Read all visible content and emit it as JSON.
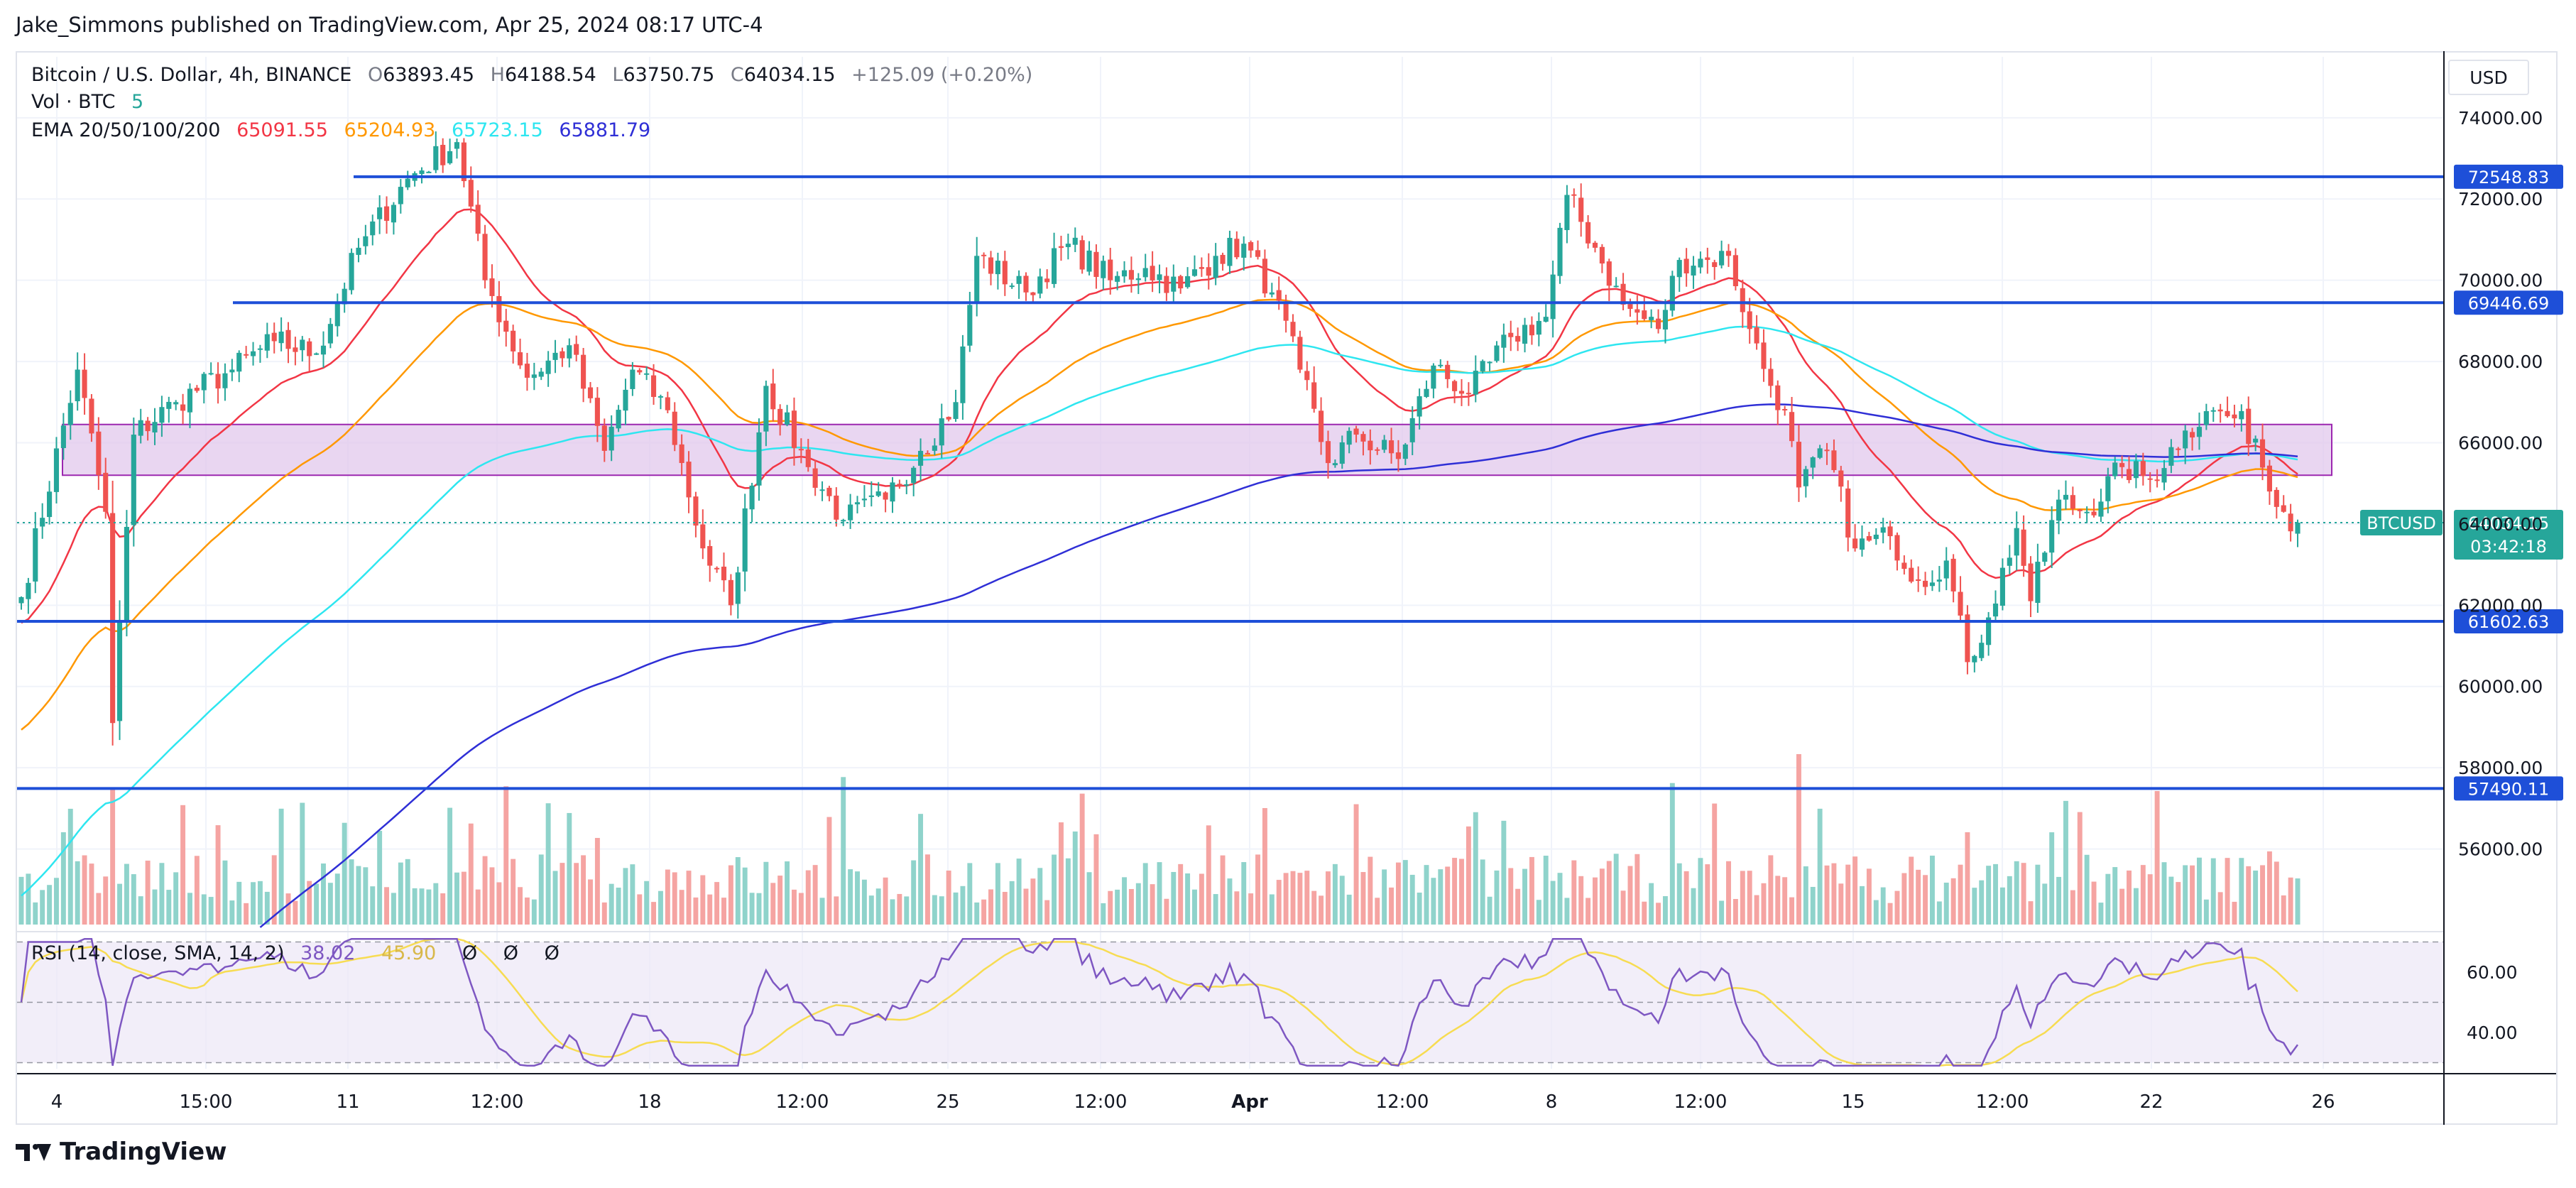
{
  "publisher": "Jake_Simmons published on TradingView.com, Apr 25, 2024 08:17 UTC-4",
  "brand": "TradingView",
  "currency": "USD",
  "legend": {
    "symbol": "Bitcoin / U.S. Dollar, 4h, BINANCE",
    "o_label": "O",
    "o": "63893.45",
    "h_label": "H",
    "h": "64188.54",
    "l_label": "L",
    "l": "63750.75",
    "c_label": "C",
    "c": "64034.15",
    "change": "+125.09 (+0.20%)",
    "vol_label": "Vol · BTC",
    "vol_value": "5",
    "ema_label": "EMA 20/50/100/200",
    "ema20": "65091.55",
    "ema50": "65204.93",
    "ema100": "65723.15",
    "ema200": "65881.79",
    "rsi_label": "RSI (14, close, SMA, 14, 2)",
    "rsi_value": "38.02",
    "rsi_value2": "45.90",
    "rsi_icons": [
      "Ø",
      "Ø",
      "Ø"
    ]
  },
  "price_axis_ticks": [
    "74000.00",
    "72000.00",
    "70000.00",
    "68000.00",
    "66000.00",
    "64000.00",
    "62000.00",
    "60000.00",
    "58000.00",
    "56000.00"
  ],
  "rsi_axis_ticks": [
    "60.00",
    "40.00"
  ],
  "time_axis_ticks": [
    "4",
    "15:00",
    "11",
    "12:00",
    "18",
    "12:00",
    "25",
    "12:00",
    "Apr",
    "12:00",
    "8",
    "12:00",
    "15",
    "12:00",
    "22",
    "26"
  ],
  "last_price": {
    "symbol": "BTCUSD",
    "price": "64034.15",
    "countdown": "03:42:18"
  },
  "colors": {
    "up": "#26a69a",
    "down": "#ef5350",
    "vol_up": "#8fd3cb",
    "vol_down": "#f5a4a2",
    "ema20": "#f23645",
    "ema50": "#ff9800",
    "ema100": "#2ee6f0",
    "ema200": "#2f2fd6",
    "level": "#1e4fd8",
    "zone_fill": "#e1c8ec",
    "zone_stroke": "#9c27b0",
    "rsi": "#7e57c2",
    "rsi_ma": "#f7dc52",
    "rsi_band": "#ede7f6"
  },
  "chart_data": {
    "type": "candlestick",
    "title": "Bitcoin / U.S. Dollar, 4h, BINANCE",
    "ylim": [
      54000,
      75500
    ],
    "levels": [
      {
        "label": "72548.83",
        "value": 72548.83
      },
      {
        "label": "69446.69",
        "value": 69446.69
      },
      {
        "label": "61602.63",
        "value": 61602.63
      },
      {
        "label": "57490.11",
        "value": 57490.11
      }
    ],
    "zone": {
      "low": 65200,
      "high": 66450
    },
    "anchors": [
      {
        "t": 0,
        "p": 62200
      },
      {
        "t": 8,
        "p": 67800
      },
      {
        "t": 12,
        "p": 64300
      },
      {
        "t": 13,
        "p": 59100
      },
      {
        "t": 16,
        "p": 66200
      },
      {
        "t": 22,
        "p": 67000
      },
      {
        "t": 30,
        "p": 67800
      },
      {
        "t": 36,
        "p": 68500
      },
      {
        "t": 42,
        "p": 68200
      },
      {
        "t": 48,
        "p": 70800
      },
      {
        "t": 55,
        "p": 72500
      },
      {
        "t": 62,
        "p": 73400
      },
      {
        "t": 66,
        "p": 70000
      },
      {
        "t": 72,
        "p": 67600
      },
      {
        "t": 78,
        "p": 68400
      },
      {
        "t": 83,
        "p": 65800
      },
      {
        "t": 87,
        "p": 67800
      },
      {
        "t": 92,
        "p": 66800
      },
      {
        "t": 97,
        "p": 63400
      },
      {
        "t": 101,
        "p": 62000
      },
      {
        "t": 106,
        "p": 67400
      },
      {
        "t": 112,
        "p": 65400
      },
      {
        "t": 117,
        "p": 64100
      },
      {
        "t": 123,
        "p": 64600
      },
      {
        "t": 128,
        "p": 65800
      },
      {
        "t": 133,
        "p": 67000
      },
      {
        "t": 136,
        "p": 70600
      },
      {
        "t": 143,
        "p": 69700
      },
      {
        "t": 149,
        "p": 70900
      },
      {
        "t": 155,
        "p": 70000
      },
      {
        "t": 160,
        "p": 70300
      },
      {
        "t": 165,
        "p": 69800
      },
      {
        "t": 170,
        "p": 70600
      },
      {
        "t": 174,
        "p": 70900
      },
      {
        "t": 178,
        "p": 69700
      },
      {
        "t": 182,
        "p": 67800
      },
      {
        "t": 186,
        "p": 65500
      },
      {
        "t": 190,
        "p": 66200
      },
      {
        "t": 196,
        "p": 65600
      },
      {
        "t": 201,
        "p": 67900
      },
      {
        "t": 206,
        "p": 67200
      },
      {
        "t": 212,
        "p": 68600
      },
      {
        "t": 217,
        "p": 69100
      },
      {
        "t": 220,
        "p": 72100
      },
      {
        "t": 224,
        "p": 70800
      },
      {
        "t": 228,
        "p": 69400
      },
      {
        "t": 233,
        "p": 68800
      },
      {
        "t": 236,
        "p": 70500
      },
      {
        "t": 240,
        "p": 70500
      },
      {
        "t": 243,
        "p": 70600
      },
      {
        "t": 246,
        "p": 68800
      },
      {
        "t": 249,
        "p": 67400
      },
      {
        "t": 251,
        "p": 66800
      },
      {
        "t": 253,
        "p": 64900
      },
      {
        "t": 257,
        "p": 65800
      },
      {
        "t": 261,
        "p": 63400
      },
      {
        "t": 266,
        "p": 63700
      },
      {
        "t": 270,
        "p": 62600
      },
      {
        "t": 274,
        "p": 63100
      },
      {
        "t": 277,
        "p": 60600
      },
      {
        "t": 280,
        "p": 61700
      },
      {
        "t": 284,
        "p": 63900
      },
      {
        "t": 286,
        "p": 62100
      },
      {
        "t": 290,
        "p": 64600
      },
      {
        "t": 294,
        "p": 64300
      },
      {
        "t": 299,
        "p": 65400
      },
      {
        "t": 303,
        "p": 65100
      },
      {
        "t": 308,
        "p": 66300
      },
      {
        "t": 312,
        "p": 66800
      },
      {
        "t": 315,
        "p": 66600
      },
      {
        "t": 318,
        "p": 66100
      },
      {
        "t": 320,
        "p": 64800
      },
      {
        "t": 322,
        "p": 64300
      },
      {
        "t": 324,
        "p": 64034
      }
    ],
    "candle_count": 325,
    "rsi_ylim": [
      28,
      72
    ]
  }
}
